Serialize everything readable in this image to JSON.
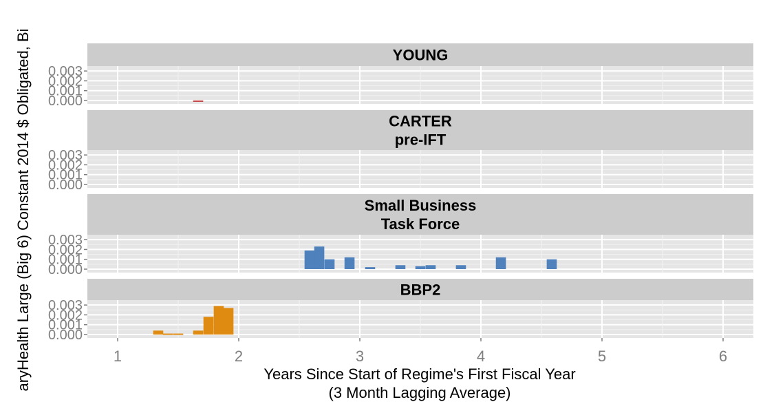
{
  "chart_data": {
    "type": "bar",
    "ylabel": "aryHealth Large (Big 6) Constant 2014 $ Obligated, Bi",
    "xlabel_line1": "Years Since Start of Regime's First Fiscal Year",
    "xlabel_line2": "(3 Month Lagging Average)",
    "xlim": [
      0.75,
      6.25
    ],
    "x_ticks": [
      1,
      2,
      3,
      4,
      5,
      6
    ],
    "x_tick_labels": [
      "1",
      "2",
      "3",
      "4",
      "5",
      "6"
    ],
    "ylim": [
      -0.00035,
      0.0035
    ],
    "y_ticks": [
      0,
      0.001,
      0.002,
      0.003
    ],
    "y_tick_labels": [
      "0.000",
      "0.001",
      "0.002",
      "0.003"
    ],
    "bar_width": 0.083,
    "grid": true,
    "panels": [
      {
        "title_lines": [
          "YOUNG"
        ],
        "color": "#c8484a",
        "x": [
          1.665
        ],
        "values": [
          -0.0001
        ]
      },
      {
        "title_lines": [
          "CARTER",
          "pre-IFT"
        ],
        "color": "#4f81bd",
        "x": [],
        "values": []
      },
      {
        "title_lines": [
          "Small Business",
          "Task Force"
        ],
        "color": "#4f81bd",
        "x": [
          2.585,
          2.665,
          2.75,
          2.915,
          3.085,
          3.335,
          3.5,
          3.585,
          3.835,
          4.165,
          4.585
        ],
        "values": [
          0.0019,
          0.0023,
          0.001,
          0.0012,
          0.0002,
          0.0004,
          0.0003,
          0.0004,
          0.0004,
          0.0012,
          0.001
        ]
      },
      {
        "title_lines": [
          "BBP2"
        ],
        "color": "#df8a10",
        "x": [
          1.335,
          1.415,
          1.5,
          1.665,
          1.75,
          1.835,
          1.915
        ],
        "values": [
          0.0004,
          0.0001,
          0.0001,
          0.0004,
          0.0018,
          0.0029,
          0.0027
        ]
      }
    ]
  }
}
